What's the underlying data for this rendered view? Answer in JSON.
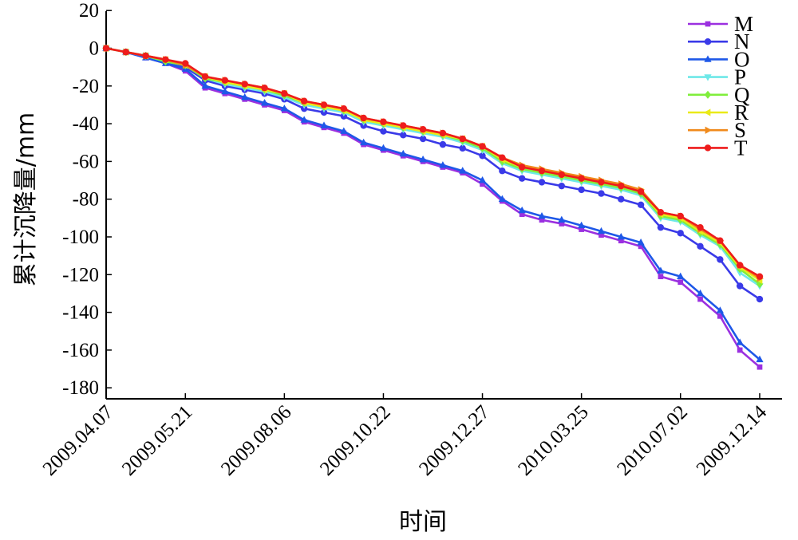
{
  "chart_data": {
    "type": "line",
    "title": "",
    "xlabel": "时间",
    "ylabel": "累计沉降量/mm",
    "ylim": [
      -180,
      20
    ],
    "yticks": [
      20,
      0,
      -20,
      -40,
      -60,
      -80,
      -100,
      -120,
      -140,
      -160,
      -180
    ],
    "x_tick_labels": [
      "2009.04.07",
      "2009.05.21",
      "2009.08.06",
      "2009.10.22",
      "2009.12.27",
      "2010.03.25",
      "2010.07.02",
      "2009.12.14"
    ],
    "x_tick_at_point": [
      0,
      4,
      9,
      14,
      19,
      24,
      29,
      33
    ],
    "grid": false,
    "legend_position": "top-right",
    "series": [
      {
        "name": "M",
        "color": "#9b30e0",
        "marker": "square",
        "values": [
          0,
          -2,
          -5,
          -8,
          -12,
          -21,
          -24,
          -27,
          -30,
          -33,
          -39,
          -42,
          -45,
          -51,
          -54,
          -57,
          -60,
          -63,
          -66,
          -72,
          -81,
          -88,
          -91,
          -93,
          -96,
          -99,
          -102,
          -105,
          -121,
          -124,
          -133,
          -142,
          -160,
          -169
        ]
      },
      {
        "name": "N",
        "color": "#3a3ae8",
        "marker": "circle",
        "values": [
          0,
          -2,
          -4,
          -7,
          -10,
          -17,
          -20,
          -22,
          -24,
          -27,
          -32,
          -34,
          -36,
          -41,
          -44,
          -46,
          -48,
          -51,
          -53,
          -57,
          -65,
          -69,
          -71,
          -73,
          -75,
          -77,
          -80,
          -83,
          -95,
          -98,
          -105,
          -112,
          -126,
          -133
        ]
      },
      {
        "name": "O",
        "color": "#1e58e8",
        "marker": "triangle-up",
        "values": [
          0,
          -2,
          -5,
          -8,
          -11,
          -20,
          -23,
          -26,
          -29,
          -32,
          -38,
          -41,
          -44,
          -50,
          -53,
          -56,
          -59,
          -62,
          -65,
          -70,
          -80,
          -86,
          -89,
          -91,
          -94,
          -97,
          -100,
          -103,
          -118,
          -121,
          -130,
          -139,
          -156,
          -165
        ]
      },
      {
        "name": "P",
        "color": "#6ee8e8",
        "marker": "triangle-down",
        "values": [
          0,
          -2,
          -4,
          -7,
          -9,
          -16,
          -19,
          -21,
          -23,
          -26,
          -30,
          -32,
          -34,
          -39,
          -41,
          -43,
          -45,
          -47,
          -50,
          -54,
          -61,
          -65,
          -67,
          -69,
          -71,
          -73,
          -75,
          -78,
          -90,
          -92,
          -99,
          -105,
          -119,
          -126
        ]
      },
      {
        "name": "Q",
        "color": "#80ee3c",
        "marker": "diamond",
        "values": [
          0,
          -2,
          -4,
          -7,
          -9,
          -16,
          -18,
          -20,
          -22,
          -25,
          -29,
          -31,
          -33,
          -38,
          -40,
          -42,
          -44,
          -46,
          -49,
          -53,
          -60,
          -64,
          -66,
          -68,
          -70,
          -72,
          -74,
          -77,
          -89,
          -91,
          -98,
          -104,
          -117,
          -125
        ]
      },
      {
        "name": "R",
        "color": "#eaea18",
        "marker": "triangle-left",
        "values": [
          0,
          -2,
          -4,
          -6,
          -9,
          -15,
          -18,
          -20,
          -22,
          -24,
          -29,
          -31,
          -33,
          -38,
          -40,
          -42,
          -44,
          -46,
          -48,
          -52,
          -59,
          -63,
          -65,
          -67,
          -69,
          -71,
          -73,
          -76,
          -88,
          -90,
          -97,
          -103,
          -116,
          -123
        ]
      },
      {
        "name": "S",
        "color": "#f08a1c",
        "marker": "triangle-right",
        "values": [
          0,
          -2,
          -4,
          -6,
          -9,
          -15,
          -17,
          -19,
          -21,
          -24,
          -28,
          -30,
          -32,
          -37,
          -39,
          -41,
          -43,
          -45,
          -48,
          -52,
          -58,
          -62,
          -64,
          -66,
          -68,
          -70,
          -72,
          -75,
          -87,
          -89,
          -96,
          -102,
          -115,
          -122
        ]
      },
      {
        "name": "T",
        "color": "#ee1c1c",
        "marker": "circle",
        "values": [
          0,
          -2,
          -4,
          -6,
          -8,
          -15,
          -17,
          -19,
          -21,
          -24,
          -28,
          -30,
          -32,
          -37,
          -39,
          -41,
          -43,
          -45,
          -48,
          -52,
          -58,
          -63,
          -65,
          -67,
          -69,
          -71,
          -73,
          -76,
          -87,
          -89,
          -95,
          -102,
          -115,
          -121
        ]
      }
    ]
  }
}
